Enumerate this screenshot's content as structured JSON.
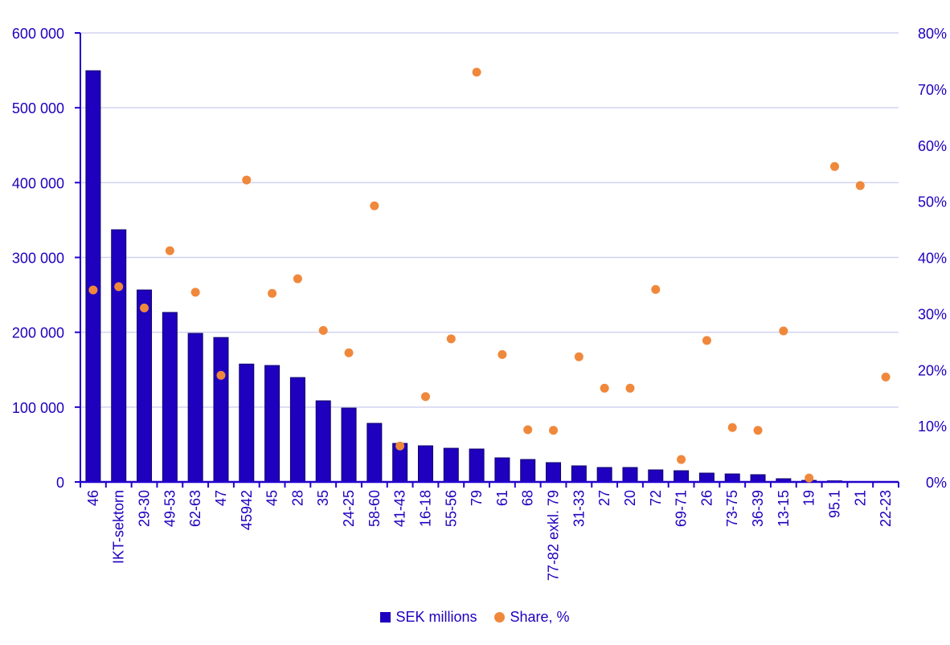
{
  "chart_data": {
    "type": "bar",
    "categories": [
      "46",
      "IKT-sektorn",
      "29-30",
      "49-53",
      "62-63",
      "47",
      "45942",
      "45",
      "28",
      "35",
      "24-25",
      "58-60",
      "41-43",
      "16-18",
      "55-56",
      "79",
      "61",
      "68",
      "77-82 exkl. 79",
      "31-33",
      "27",
      "20",
      "72",
      "69-71",
      "26",
      "73-75",
      "36-39",
      "13-15",
      "19",
      "95.1",
      "21",
      "22-23"
    ],
    "series": [
      {
        "name": "SEK millions",
        "type": "bar",
        "axis": "left",
        "color": "#1e00be",
        "values": [
          549500,
          337000,
          256500,
          226500,
          198500,
          193000,
          157500,
          155600,
          139500,
          108400,
          98700,
          78300,
          51500,
          48300,
          45000,
          44000,
          32200,
          30000,
          25800,
          21500,
          19300,
          19300,
          16100,
          15000,
          11800,
          10700,
          9700,
          4300,
          2100,
          1500,
          300,
          200
        ]
      },
      {
        "name": "Share, %",
        "type": "scatter",
        "axis": "right",
        "color": "#f0883c",
        "values": [
          34.2,
          34.8,
          31.0,
          41.2,
          33.8,
          19.0,
          53.8,
          33.6,
          36.2,
          27.0,
          23.0,
          49.2,
          6.4,
          15.2,
          25.5,
          73.0,
          22.7,
          9.3,
          9.2,
          22.3,
          16.7,
          16.7,
          34.3,
          4.0,
          25.2,
          9.7,
          9.2,
          26.9,
          0.7,
          56.2,
          52.8,
          18.7
        ]
      }
    ],
    "left_axis": {
      "ylim": [
        0,
        600000
      ],
      "ticks": [
        0,
        100000,
        200000,
        300000,
        400000,
        500000,
        600000
      ],
      "tick_labels": [
        "0",
        "100 000",
        "200 000",
        "300 000",
        "400 000",
        "500 000",
        "600 000"
      ]
    },
    "right_axis": {
      "ylim": [
        0,
        80
      ],
      "ticks": [
        0,
        10,
        20,
        30,
        40,
        50,
        60,
        70,
        80
      ],
      "tick_labels": [
        "0%",
        "10%",
        "20%",
        "30%",
        "40%",
        "50%",
        "60%",
        "70%",
        "80%"
      ]
    },
    "grid": true,
    "legend_position": "bottom",
    "axis_color": "#2200cc",
    "grid_color": "#d2d2f0"
  }
}
